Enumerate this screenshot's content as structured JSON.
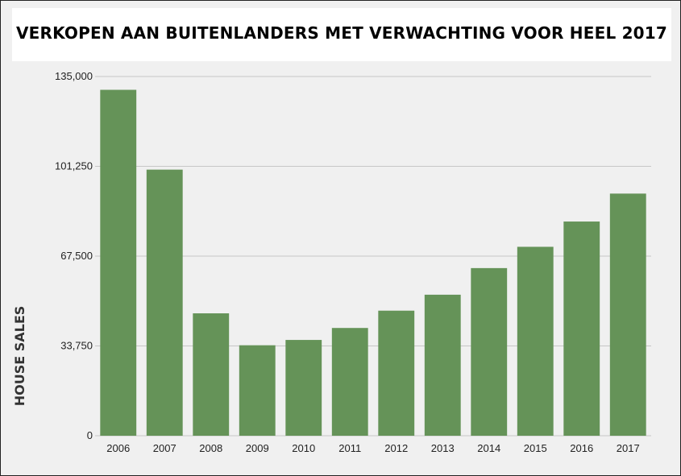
{
  "page": {
    "title": "VERKOPEN AAN BUITENLANDERS MET VERWACHTING VOOR HEEL 2017"
  },
  "chart_data": {
    "type": "bar",
    "title": "VERKOPEN AAN BUITENLANDERS MET VERWACHTING VOOR HEEL 2017",
    "xlabel": "",
    "ylabel": "HOUSE SALES",
    "categories": [
      "2006",
      "2007",
      "2008",
      "2009",
      "2010",
      "2011",
      "2012",
      "2013",
      "2014",
      "2015",
      "2016",
      "2017"
    ],
    "values": [
      130000,
      100000,
      46000,
      34000,
      36000,
      40500,
      47000,
      53000,
      63000,
      71000,
      80500,
      91000
    ],
    "ylim": [
      0,
      135000
    ],
    "yticks": [
      "0",
      "33,750",
      "67,500",
      "101,250",
      "135,000"
    ],
    "grid": true,
    "legend": "none",
    "colors": {
      "bar": "#659358",
      "grid": "#c6c6c6",
      "background": "#f0f0f0"
    }
  }
}
